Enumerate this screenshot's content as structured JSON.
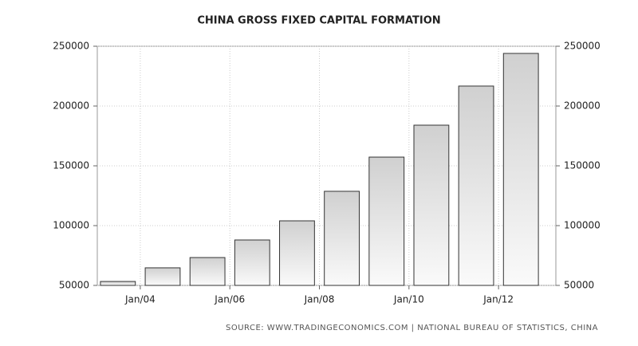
{
  "chart_data": {
    "type": "bar",
    "title": "CHINA GROSS FIXED CAPITAL FORMATION",
    "source": "SOURCE: WWW.TRADINGECONOMICS.COM | NATIONAL BUREAU OF STATISTICS, CHINA",
    "x": [
      2003.5,
      2004.5,
      2005.5,
      2006.5,
      2007.5,
      2008.5,
      2009.5,
      2010.5,
      2011.5,
      2012.5
    ],
    "values": [
      53300,
      64700,
      73300,
      88000,
      104000,
      128700,
      157300,
      184000,
      216700,
      244000
    ],
    "xlim": [
      2003.04,
      2013.28
    ],
    "xticks": [
      {
        "value": 2004,
        "label": "Jan/04"
      },
      {
        "value": 2006,
        "label": "Jan/06"
      },
      {
        "value": 2008,
        "label": "Jan/08"
      },
      {
        "value": 2010,
        "label": "Jan/10"
      },
      {
        "value": 2012,
        "label": "Jan/12"
      }
    ],
    "ylim": [
      50000,
      250000
    ],
    "yticks": [
      50000,
      100000,
      150000,
      200000,
      250000
    ],
    "y2lim": [
      50000,
      250000
    ],
    "y2ticks": [
      50000,
      100000,
      150000,
      200000,
      250000
    ],
    "color": "#d0d0d0",
    "grid": true
  }
}
